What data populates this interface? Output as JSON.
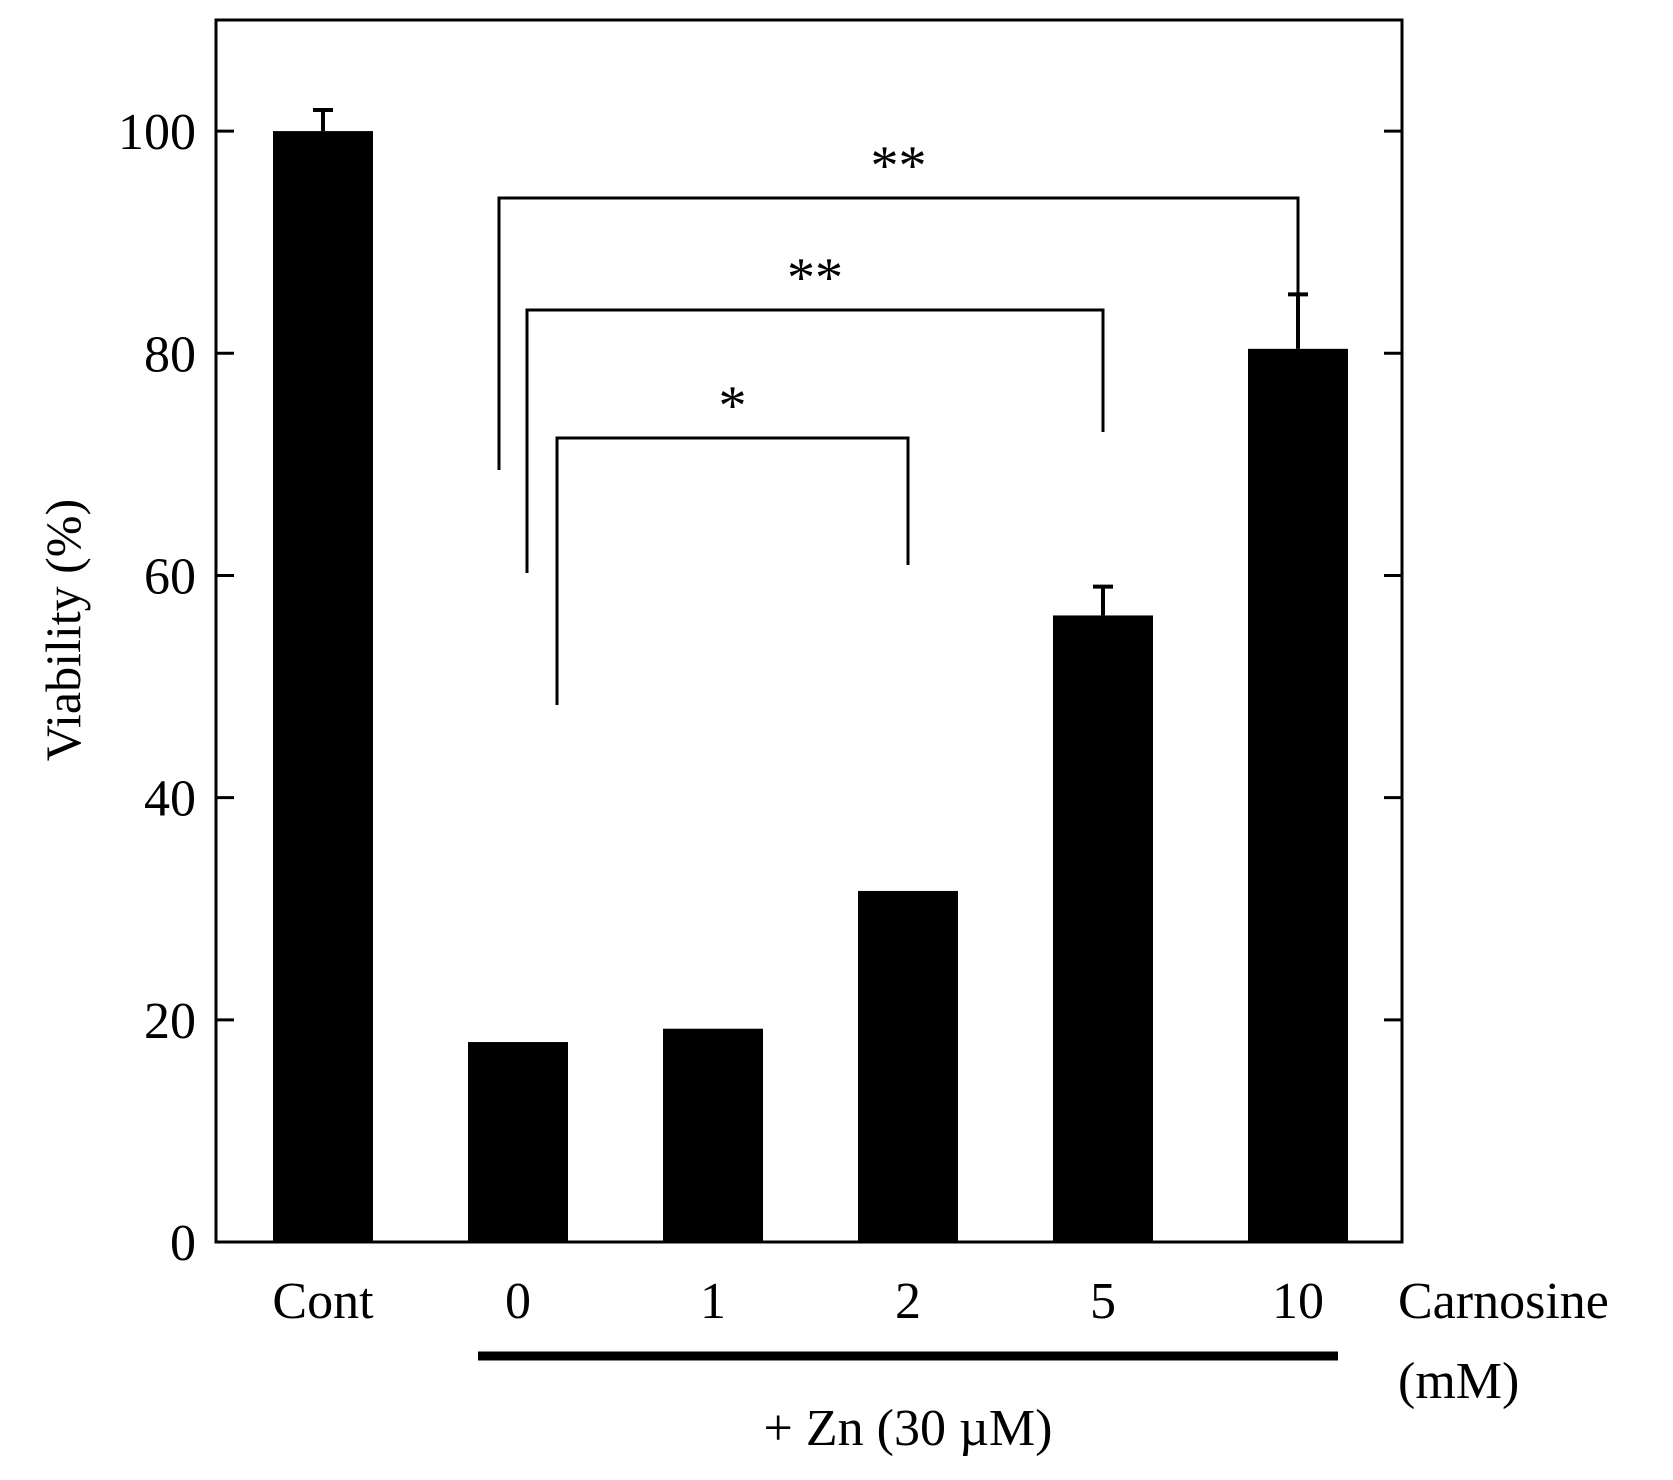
{
  "chart_data": {
    "type": "bar",
    "ylabel": "Viability (%)",
    "ylim": [
      0,
      110
    ],
    "yticks": [
      0,
      20,
      40,
      60,
      80,
      100
    ],
    "categories": [
      "Cont",
      "0",
      "1",
      "2",
      "5",
      "10"
    ],
    "values": [
      100,
      18,
      19.2,
      31.6,
      56.4,
      80.4
    ],
    "errors": [
      1.9,
      0,
      0,
      0,
      2.6,
      4.9
    ],
    "x_axis_label_lines": [
      "Carnosine",
      "(mM)"
    ],
    "group": {
      "label": "+ Zn (30 µM)",
      "from_category": 1,
      "to_category": 5
    },
    "significance": [
      {
        "from": 1,
        "to": 3,
        "label": "*"
      },
      {
        "from": 1,
        "to": 4,
        "label": "**"
      },
      {
        "from": 1,
        "to": 5,
        "label": "**"
      }
    ],
    "colors": {
      "bar": "#000000",
      "axis": "#000000",
      "background": "#ffffff"
    }
  }
}
